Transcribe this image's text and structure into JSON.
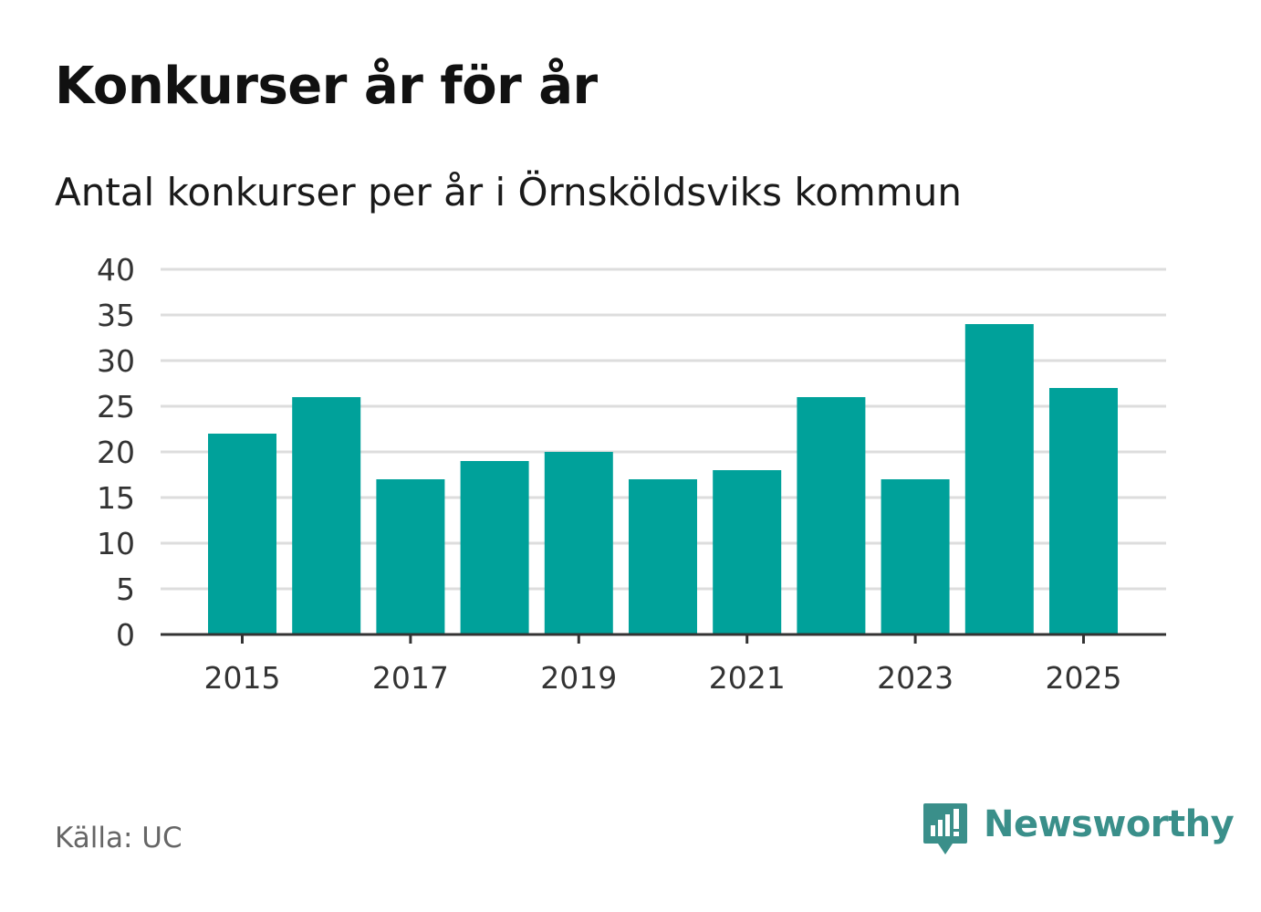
{
  "header": {
    "title": "Konkurser år för år",
    "subtitle": "Antal konkurser per år i Örnsköldsviks kommun"
  },
  "footer": {
    "source": "Källa: UC",
    "brand": "Newsworthy",
    "brand_icon": "newsworthy-logo-icon"
  },
  "colors": {
    "bar": "#00a19a",
    "grid": "#dddddd",
    "axis": "#333333",
    "brand": "#3a8f8a"
  },
  "chart_data": {
    "type": "bar",
    "title": "Konkurser år för år",
    "subtitle": "Antal konkurser per år i Örnsköldsviks kommun",
    "xlabel": "",
    "ylabel": "",
    "categories": [
      "2015",
      "2016",
      "2017",
      "2018",
      "2019",
      "2020",
      "2021",
      "2022",
      "2023",
      "2024",
      "2025"
    ],
    "values": [
      22,
      26,
      17,
      19,
      20,
      17,
      18,
      26,
      17,
      34,
      27
    ],
    "x_tick_labels": [
      "2015",
      "2017",
      "2019",
      "2021",
      "2023",
      "2025"
    ],
    "y_ticks": [
      0,
      5,
      10,
      15,
      20,
      25,
      30,
      35,
      40
    ],
    "ylim": [
      0,
      40
    ],
    "grid": true,
    "legend": "none"
  }
}
